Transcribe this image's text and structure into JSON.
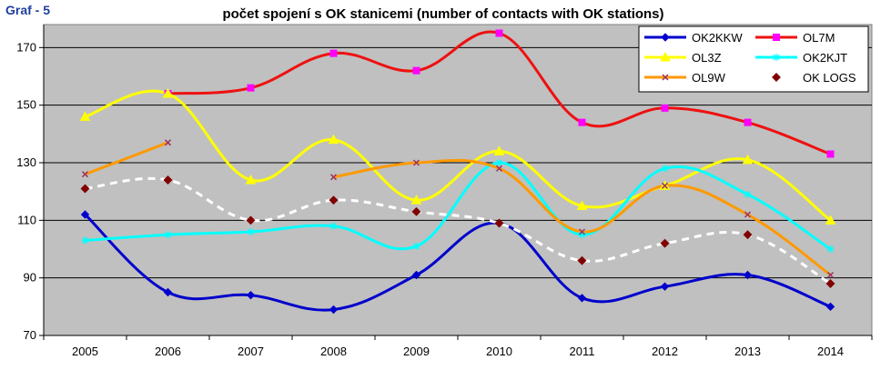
{
  "figure_label": "Graf - 5",
  "chart_data": {
    "type": "line",
    "title": "počet spojení s OK stanicemi (number of contacts with OK stations)",
    "xlabel": "",
    "ylabel": "",
    "categories": [
      "2005",
      "2006",
      "2007",
      "2008",
      "2009",
      "2010",
      "2011",
      "2012",
      "2013",
      "2014"
    ],
    "ylim": [
      70,
      178
    ],
    "yticks": [
      70,
      90,
      110,
      130,
      150,
      170
    ],
    "grid": true,
    "legend_position": "top-right",
    "series": [
      {
        "name": "OK2KKW",
        "color": "#0000cc",
        "marker": "diamond",
        "dashed": false,
        "values": [
          112,
          85,
          84,
          79,
          91,
          109,
          83,
          87,
          91,
          80
        ]
      },
      {
        "name": "OL7M",
        "color": "#ee1111",
        "marker": "square",
        "marker_color": "#ff00ff",
        "dashed": false,
        "values": [
          null,
          154,
          156,
          168,
          162,
          175,
          144,
          149,
          144,
          133
        ]
      },
      {
        "name": "OL3Z",
        "color": "#ffff00",
        "marker": "triangle",
        "dashed": false,
        "values": [
          146,
          154,
          124,
          138,
          117,
          134,
          115,
          122,
          131,
          110
        ]
      },
      {
        "name": "OK2KJT",
        "color": "#00ffff",
        "marker": "star",
        "dashed": false,
        "values": [
          103,
          105,
          106,
          108,
          101,
          130,
          105,
          128,
          119,
          100
        ]
      },
      {
        "name": "OL9W",
        "color": "#ff9900",
        "marker": "x",
        "marker_color": "#993366",
        "dashed": false,
        "values": [
          126,
          137,
          null,
          125,
          130,
          128,
          106,
          122,
          112,
          91
        ]
      },
      {
        "name": "OK LOGS",
        "color": "#ffffff",
        "marker": "dot",
        "marker_color": "#800000",
        "dashed": true,
        "values": [
          121,
          124,
          110,
          117,
          113,
          109,
          96,
          102,
          105,
          88
        ]
      }
    ]
  }
}
